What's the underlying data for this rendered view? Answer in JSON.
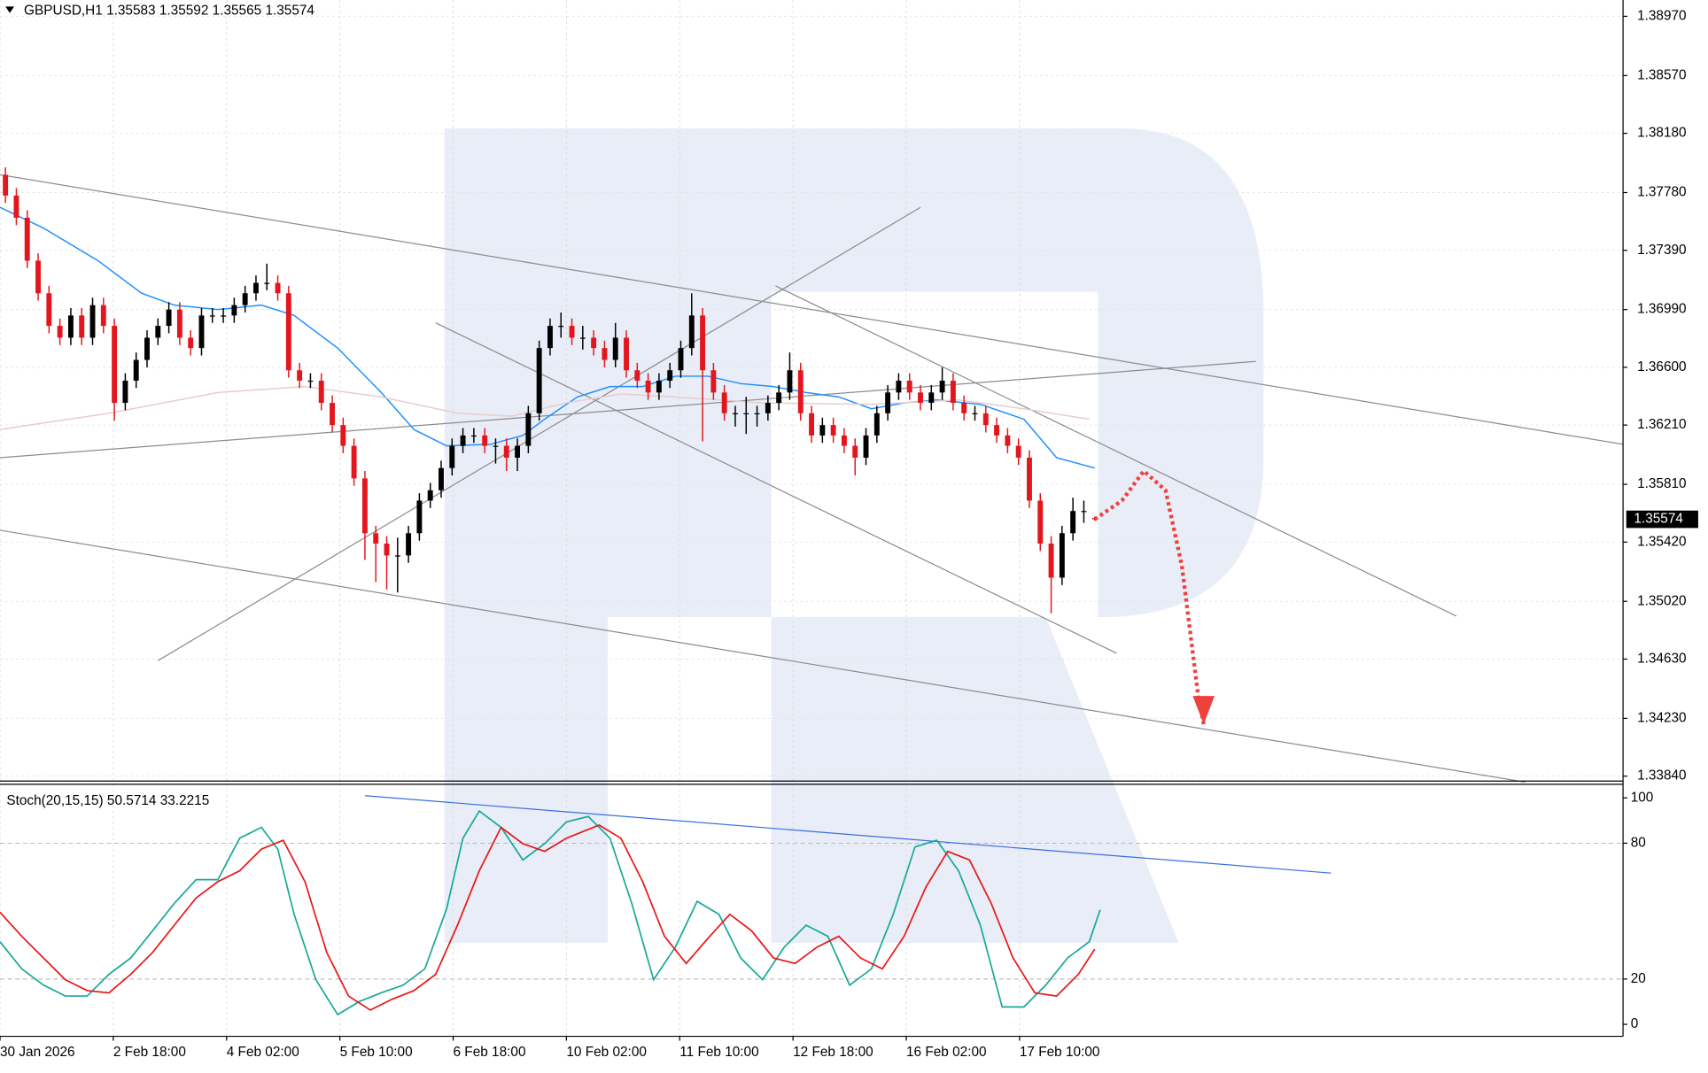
{
  "chart_data": [
    {
      "type": "candlestick",
      "title": "GBPUSD,H1 1.35583 1.35592 1.35565 1.35574",
      "open": [
        1.379,
        1.3776,
        1.3761,
        1.3732,
        1.371,
        1.3688,
        1.368,
        1.3695,
        1.368,
        1.3702,
        1.3688,
        1.3636,
        1.3651,
        1.3665,
        1.368,
        1.3688,
        1.3699,
        1.368,
        1.3673,
        1.3695,
        1.3695,
        1.3695,
        1.3702,
        1.371,
        1.3717,
        1.3717,
        1.371,
        1.3658,
        1.3651,
        1.3651,
        1.3636,
        1.3621,
        1.3607,
        1.3585,
        1.3548,
        1.3541,
        1.3533,
        1.3533,
        1.3548,
        1.357,
        1.3577,
        1.3592,
        1.3607,
        1.3614,
        1.3614,
        1.3607,
        1.3607,
        1.3599,
        1.3607,
        1.3629,
        1.3673,
        1.3688,
        1.3688,
        1.368,
        1.368,
        1.3673,
        1.3665,
        1.368,
        1.3658,
        1.3651,
        1.3643,
        1.3651,
        1.3658,
        1.3673,
        1.3695,
        1.3658,
        1.3643,
        1.3629,
        1.3629,
        1.3629,
        1.3629,
        1.3636,
        1.3643,
        1.3658,
        1.3629,
        1.3614,
        1.3621,
        1.3614,
        1.3607,
        1.3599,
        1.3614,
        1.3629,
        1.3643,
        1.3651,
        1.3643,
        1.3636,
        1.3643,
        1.3651,
        1.3636,
        1.3629,
        1.3629,
        1.3621,
        1.3614,
        1.3607,
        1.3599,
        1.357,
        1.3541,
        1.3518,
        1.3548,
        1.3563,
        1.35583
      ],
      "high": [
        1.3795,
        1.3781,
        1.3766,
        1.3737,
        1.3715,
        1.3693,
        1.37,
        1.37,
        1.3707,
        1.3707,
        1.3693,
        1.3656,
        1.367,
        1.3685,
        1.3693,
        1.3704,
        1.3704,
        1.3685,
        1.37,
        1.37,
        1.37,
        1.3707,
        1.3715,
        1.3722,
        1.373,
        1.3722,
        1.3715,
        1.3663,
        1.3656,
        1.3656,
        1.3641,
        1.3626,
        1.3612,
        1.359,
        1.3553,
        1.3546,
        1.3545,
        1.3553,
        1.3575,
        1.3582,
        1.3597,
        1.3612,
        1.3619,
        1.3619,
        1.3619,
        1.3612,
        1.3612,
        1.3612,
        1.3634,
        1.3678,
        1.3693,
        1.3697,
        1.3693,
        1.3688,
        1.3685,
        1.3678,
        1.369,
        1.3685,
        1.3663,
        1.3656,
        1.3656,
        1.3663,
        1.3678,
        1.371,
        1.37,
        1.3663,
        1.3648,
        1.3634,
        1.364,
        1.3634,
        1.3641,
        1.3648,
        1.367,
        1.3663,
        1.3634,
        1.3626,
        1.3626,
        1.3619,
        1.3612,
        1.3619,
        1.3634,
        1.3648,
        1.3656,
        1.3656,
        1.3648,
        1.3648,
        1.366,
        1.3656,
        1.3641,
        1.3634,
        1.3634,
        1.3626,
        1.3619,
        1.3612,
        1.3604,
        1.3575,
        1.3546,
        1.3553,
        1.3572,
        1.357,
        1.35592
      ],
      "low": [
        1.3771,
        1.3756,
        1.3727,
        1.3705,
        1.3683,
        1.3675,
        1.3675,
        1.3675,
        1.3675,
        1.3683,
        1.3624,
        1.3631,
        1.3646,
        1.366,
        1.3675,
        1.3683,
        1.3675,
        1.3668,
        1.3668,
        1.369,
        1.369,
        1.369,
        1.3697,
        1.3705,
        1.3712,
        1.3705,
        1.3653,
        1.3646,
        1.3646,
        1.3631,
        1.3616,
        1.3602,
        1.358,
        1.353,
        1.3515,
        1.351,
        1.3508,
        1.3528,
        1.3543,
        1.3565,
        1.3572,
        1.3587,
        1.3602,
        1.3609,
        1.3602,
        1.3595,
        1.359,
        1.359,
        1.3602,
        1.3624,
        1.3668,
        1.368,
        1.3675,
        1.3672,
        1.3668,
        1.366,
        1.366,
        1.3653,
        1.3646,
        1.3638,
        1.3638,
        1.3646,
        1.3653,
        1.3668,
        1.361,
        1.3638,
        1.3624,
        1.362,
        1.3615,
        1.362,
        1.3624,
        1.3631,
        1.3638,
        1.3624,
        1.3609,
        1.3609,
        1.3609,
        1.3602,
        1.3587,
        1.3594,
        1.3609,
        1.3624,
        1.3638,
        1.3638,
        1.3631,
        1.3631,
        1.3638,
        1.3631,
        1.3624,
        1.3624,
        1.3616,
        1.3609,
        1.3602,
        1.3594,
        1.3565,
        1.3536,
        1.3494,
        1.3513,
        1.3543,
        1.3555,
        1.35565
      ],
      "close": [
        1.3776,
        1.3761,
        1.3732,
        1.371,
        1.3688,
        1.368,
        1.3695,
        1.368,
        1.3702,
        1.3688,
        1.3636,
        1.3651,
        1.3665,
        1.368,
        1.3688,
        1.3699,
        1.368,
        1.3673,
        1.3695,
        1.3695,
        1.3695,
        1.3702,
        1.371,
        1.3717,
        1.3717,
        1.371,
        1.3658,
        1.3651,
        1.3651,
        1.3636,
        1.3621,
        1.3607,
        1.3585,
        1.3548,
        1.3541,
        1.3533,
        1.3533,
        1.3548,
        1.357,
        1.3577,
        1.3592,
        1.3607,
        1.3614,
        1.3614,
        1.3607,
        1.3607,
        1.3599,
        1.3607,
        1.3629,
        1.3673,
        1.3688,
        1.3688,
        1.368,
        1.368,
        1.3673,
        1.3665,
        1.368,
        1.3658,
        1.3651,
        1.3643,
        1.3651,
        1.3658,
        1.3673,
        1.3695,
        1.3658,
        1.3643,
        1.3629,
        1.3629,
        1.3629,
        1.3629,
        1.3636,
        1.3643,
        1.3658,
        1.3629,
        1.3614,
        1.3621,
        1.3614,
        1.3607,
        1.3599,
        1.3614,
        1.3629,
        1.3643,
        1.3651,
        1.3643,
        1.3636,
        1.3643,
        1.3651,
        1.3636,
        1.3629,
        1.3629,
        1.3621,
        1.3614,
        1.3607,
        1.3599,
        1.357,
        1.3541,
        1.3518,
        1.3548,
        1.3563,
        1.3563,
        1.35574
      ],
      "up_color": "#000000",
      "down_color": "#e3161d",
      "xlim": [
        -0.5,
        148.5
      ],
      "ylim": [
        1.33803,
        1.3908
      ],
      "yticks": [
        {
          "value": 1.3897,
          "label": "1.38970"
        },
        {
          "value": 1.3857,
          "label": "1.38570"
        },
        {
          "value": 1.3818,
          "label": "1.38180"
        },
        {
          "value": 1.3778,
          "label": "1.37780"
        },
        {
          "value": 1.3739,
          "label": "1.37390"
        },
        {
          "value": 1.3699,
          "label": "1.36990"
        },
        {
          "value": 1.366,
          "label": "1.36600"
        },
        {
          "value": 1.3621,
          "label": "1.36210"
        },
        {
          "value": 1.3581,
          "label": "1.35810"
        },
        {
          "value": 1.3542,
          "label": "1.35420"
        },
        {
          "value": 1.3502,
          "label": "1.35020"
        },
        {
          "value": 1.3463,
          "label": "1.34630"
        },
        {
          "value": 1.3423,
          "label": "1.34230"
        },
        {
          "value": 1.3384,
          "label": "1.33840"
        }
      ],
      "grid": true,
      "last_price": 1.35574,
      "lines": [
        {
          "color": "#1e8fff",
          "x": [
            -0.5,
            3.5,
            8.5,
            12.5,
            15.5,
            19.5,
            23.5,
            26.5,
            30.5,
            34.5,
            37.5,
            40.5,
            44.5,
            47.5,
            49.5,
            52.5,
            55.5,
            58.5,
            61.5,
            64.5,
            67.5,
            70.5,
            73.5,
            76.5,
            79.5,
            82.5,
            85.5,
            89.5,
            93.5,
            96.5,
            100
          ],
          "values": [
            1.3768,
            1.3754,
            1.3732,
            1.371,
            1.3702,
            1.3699,
            1.3702,
            1.3695,
            1.3673,
            1.3643,
            1.3618,
            1.3607,
            1.3608,
            1.3614,
            1.3625,
            1.364,
            1.3647,
            1.3647,
            1.3654,
            1.3654,
            1.3649,
            1.3647,
            1.3643,
            1.364,
            1.3632,
            1.3636,
            1.3638,
            1.3635,
            1.3625,
            1.3599,
            1.3592
          ]
        },
        {
          "color": "#e8cccc",
          "x": [
            -0.5,
            9.5,
            19.5,
            27.5,
            34.5,
            41.5,
            46.5,
            51.5,
            56.5,
            61.5,
            69.5,
            79.5,
            87.5,
            93.5,
            99.5
          ],
          "values": [
            1.3618,
            1.3629,
            1.3643,
            1.3647,
            1.364,
            1.3629,
            1.3627,
            1.3636,
            1.3642,
            1.364,
            1.3636,
            1.3635,
            1.3638,
            1.3632,
            1.3625
          ]
        }
      ],
      "trendlines": [
        {
          "color": "#8c8c8c",
          "x": [
            -0.5,
            148.5
          ],
          "values": [
            1.379,
            1.3608
          ]
        },
        {
          "color": "#8c8c8c",
          "x": [
            -0.5,
            114.8
          ],
          "values": [
            1.3599,
            1.3664
          ]
        },
        {
          "color": "#8c8c8c",
          "x": [
            14,
            84
          ],
          "values": [
            1.3462,
            1.3768
          ]
        },
        {
          "color": "#8c8c8c",
          "x": [
            39.5,
            102
          ],
          "values": [
            1.369,
            1.3467
          ]
        },
        {
          "color": "#8c8c8c",
          "x": [
            70.7,
            133.2
          ],
          "values": [
            1.3715,
            1.3492
          ]
        },
        {
          "color": "#8c8c8c",
          "x": [
            -0.5,
            139.5
          ],
          "values": [
            1.355,
            1.338
          ]
        }
      ],
      "forecast": {
        "color": "#f0403c",
        "x": [
          100,
          102.5,
          104.5,
          106.5,
          108,
          109.5,
          110
        ],
        "values": [
          1.35574,
          1.357,
          1.359,
          1.3577,
          1.3526,
          1.3438,
          1.3419
        ]
      }
    },
    {
      "type": "stochastic",
      "title": "Stoch(20,15,15) 50.5714 33.2215",
      "xlim": [
        -0.5,
        148.5
      ],
      "ylim": [
        -5.29,
        106.25
      ],
      "yticks": [
        0,
        20,
        80,
        100
      ],
      "levels": [
        20,
        80
      ],
      "xticks": [
        {
          "value": -0.5,
          "label": "30 Jan 2026"
        },
        {
          "value": 9.9,
          "label": "2 Feb 18:00"
        },
        {
          "value": 20.3,
          "label": "4 Feb 02:00"
        },
        {
          "value": 30.7,
          "label": "5 Feb 10:00"
        },
        {
          "value": 41.1,
          "label": "6 Feb 18:00"
        },
        {
          "value": 51.5,
          "label": "10 Feb 02:00"
        },
        {
          "value": 61.9,
          "label": "11 Feb 10:00"
        },
        {
          "value": 72.3,
          "label": "12 Feb 18:00"
        },
        {
          "value": 82.7,
          "label": "16 Feb 02:00"
        },
        {
          "value": 93.1,
          "label": "17 Feb 10:00"
        }
      ],
      "series": [
        {
          "color": "#1aa89a",
          "x": [
            -0.5,
            1.5,
            3.5,
            5.5,
            7.5,
            9.5,
            11.5,
            13.5,
            15.5,
            17.5,
            19.5,
            21.5,
            23.5,
            25,
            26.5,
            28.5,
            30.5,
            32.5,
            34.5,
            36.5,
            38.5,
            40.5,
            42,
            43.5,
            45.5,
            47.5,
            49.5,
            51.5,
            53.5,
            55.5,
            57.5,
            59.5,
            61.5,
            63.5,
            65.5,
            67.5,
            69.5,
            71.5,
            73.5,
            75.5,
            77.5,
            79.5,
            81.5,
            83.5,
            85.5,
            87.5,
            89.5,
            91.5,
            93.5,
            95.5,
            97.5,
            99.5,
            100.5
          ],
          "values": [
            36.5,
            24.5,
            17.3,
            12.5,
            12.5,
            22.1,
            29.3,
            41.3,
            53.4,
            63.9,
            63.9,
            82.2,
            87.0,
            77.4,
            48.6,
            19.7,
            4.3,
            10.1,
            13.9,
            17.3,
            24.5,
            51.0,
            82.2,
            94.2,
            87.0,
            72.6,
            79.8,
            89.4,
            91.8,
            82.2,
            53.4,
            19.7,
            34.1,
            54.3,
            48.6,
            29.3,
            19.7,
            34.1,
            43.8,
            38.9,
            17.3,
            24.5,
            48.6,
            78.4,
            81.3,
            67.8,
            43.8,
            7.7,
            7.7,
            17.3,
            29.3,
            36.5,
            50.6
          ]
        },
        {
          "color": "#e81818",
          "x": [
            -0.5,
            1.5,
            3.5,
            5.5,
            7.5,
            9.5,
            11.5,
            13.5,
            15.5,
            17.5,
            19.5,
            21.5,
            23.5,
            25.5,
            27.5,
            29.5,
            31.5,
            33.5,
            35.5,
            37.5,
            39.5,
            41.5,
            43.5,
            45.5,
            47.5,
            49.5,
            51.5,
            54.5,
            56.5,
            58.5,
            60.5,
            62.5,
            64.5,
            66.5,
            68.5,
            70.5,
            72.5,
            74.5,
            76.5,
            78.5,
            80.5,
            82.5,
            84.5,
            86.5,
            88.5,
            90.5,
            92.5,
            94.5,
            96.5,
            98.5,
            100
          ],
          "values": [
            49.5,
            38.9,
            29.3,
            19.7,
            14.9,
            13.9,
            22.1,
            31.7,
            43.8,
            55.8,
            63.0,
            67.8,
            77.4,
            81.3,
            63.0,
            31.7,
            12.5,
            6.3,
            11.1,
            14.9,
            22.1,
            43.8,
            67.8,
            87.0,
            79.8,
            76.4,
            82.2,
            88.0,
            82.2,
            63.0,
            38.9,
            26.9,
            38.0,
            48.6,
            41.3,
            29.3,
            26.9,
            34.1,
            38.9,
            29.3,
            24.5,
            38.9,
            60.6,
            76.4,
            72.6,
            53.4,
            29.3,
            13.9,
            12.5,
            22.1,
            33.2
          ]
        }
      ],
      "trendlines": [
        {
          "color": "#3a6fe0",
          "x": [
            33,
            121.7
          ],
          "values": [
            101.0,
            66.8
          ]
        }
      ]
    }
  ]
}
